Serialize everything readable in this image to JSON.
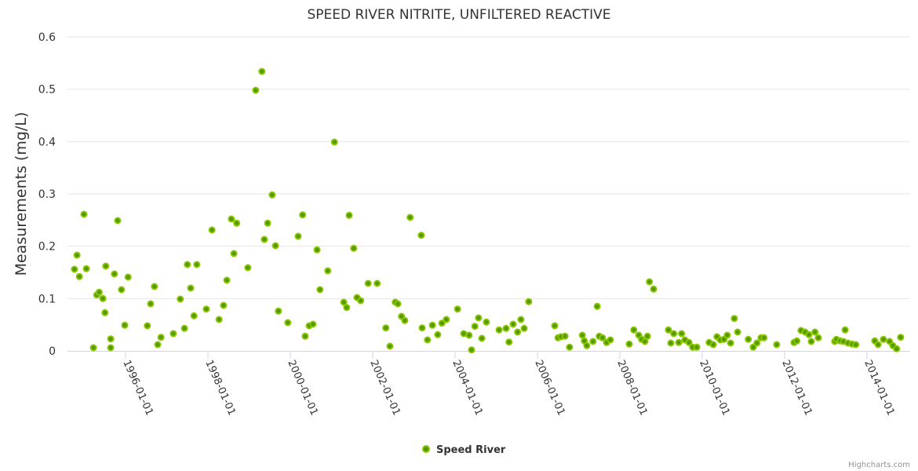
{
  "chart_data": {
    "type": "scatter",
    "title": "SPEED RIVER NITRITE, UNFILTERED REACTIVE",
    "xlabel": "",
    "ylabel": "Measurements (mg/L)",
    "xlim": [
      1994.59,
      2015.05
    ],
    "ylim": [
      0,
      0.6
    ],
    "yticks": [
      0,
      0.1,
      0.2,
      0.3,
      0.4,
      0.5,
      0.6
    ],
    "ytick_labels": [
      "0",
      "0.1",
      "0.2",
      "0.3",
      "0.4",
      "0.5",
      "0.6"
    ],
    "xticks": [
      1996,
      1998,
      2000,
      2002,
      2004,
      2006,
      2008,
      2010,
      2012,
      2014
    ],
    "xtick_labels": [
      "1996-01-01",
      "1998-01-01",
      "2000-01-01",
      "2002-01-01",
      "2004-01-01",
      "2006-01-01",
      "2008-01-01",
      "2010-01-01",
      "2012-01-01",
      "2014-01-01"
    ],
    "grid": true,
    "legend_position": "bottom-center",
    "credits": "Highcharts.com",
    "colors": {
      "marker_fill": "#4f9a00",
      "marker_stroke": "#8cc400",
      "grid": "#e6e6e6",
      "axis": "#ccd6eb"
    },
    "series": [
      {
        "name": "Speed River",
        "points": [
          [
            1994.76,
            0.156
          ],
          [
            1994.82,
            0.183
          ],
          [
            1994.88,
            0.142
          ],
          [
            1994.99,
            0.261
          ],
          [
            1995.05,
            0.157
          ],
          [
            1995.22,
            0.006
          ],
          [
            1995.3,
            0.107
          ],
          [
            1995.36,
            0.112
          ],
          [
            1995.45,
            0.1
          ],
          [
            1995.5,
            0.073
          ],
          [
            1995.52,
            0.162
          ],
          [
            1995.64,
            0.023
          ],
          [
            1995.64,
            0.006
          ],
          [
            1995.73,
            0.147
          ],
          [
            1995.81,
            0.249
          ],
          [
            1995.9,
            0.117
          ],
          [
            1995.98,
            0.049
          ],
          [
            1996.06,
            0.141
          ],
          [
            1996.53,
            0.048
          ],
          [
            1996.61,
            0.09
          ],
          [
            1996.7,
            0.123
          ],
          [
            1996.78,
            0.012
          ],
          [
            1996.86,
            0.026
          ],
          [
            1997.16,
            0.033
          ],
          [
            1997.33,
            0.099
          ],
          [
            1997.43,
            0.043
          ],
          [
            1997.5,
            0.165
          ],
          [
            1997.58,
            0.12
          ],
          [
            1997.66,
            0.067
          ],
          [
            1997.73,
            0.165
          ],
          [
            1997.96,
            0.08
          ],
          [
            1998.1,
            0.231
          ],
          [
            1998.27,
            0.06
          ],
          [
            1998.38,
            0.087
          ],
          [
            1998.46,
            0.135
          ],
          [
            1998.57,
            0.252
          ],
          [
            1998.63,
            0.186
          ],
          [
            1998.7,
            0.244
          ],
          [
            1998.97,
            0.159
          ],
          [
            1999.16,
            0.498
          ],
          [
            1999.31,
            0.534
          ],
          [
            1999.37,
            0.213
          ],
          [
            1999.45,
            0.244
          ],
          [
            1999.56,
            0.298
          ],
          [
            1999.64,
            0.201
          ],
          [
            1999.71,
            0.076
          ],
          [
            1999.94,
            0.054
          ],
          [
            2000.19,
            0.219
          ],
          [
            2000.3,
            0.26
          ],
          [
            2000.36,
            0.028
          ],
          [
            2000.46,
            0.048
          ],
          [
            2000.55,
            0.051
          ],
          [
            2000.65,
            0.193
          ],
          [
            2000.72,
            0.117
          ],
          [
            2000.91,
            0.153
          ],
          [
            2001.07,
            0.399
          ],
          [
            2001.3,
            0.093
          ],
          [
            2001.37,
            0.083
          ],
          [
            2001.43,
            0.259
          ],
          [
            2001.54,
            0.196
          ],
          [
            2001.62,
            0.102
          ],
          [
            2001.71,
            0.096
          ],
          [
            2001.89,
            0.129
          ],
          [
            2002.11,
            0.129
          ],
          [
            2002.32,
            0.044
          ],
          [
            2002.42,
            0.009
          ],
          [
            2002.55,
            0.093
          ],
          [
            2002.61,
            0.09
          ],
          [
            2002.7,
            0.066
          ],
          [
            2002.78,
            0.058
          ],
          [
            2002.91,
            0.255
          ],
          [
            2003.18,
            0.221
          ],
          [
            2003.2,
            0.044
          ],
          [
            2003.33,
            0.021
          ],
          [
            2003.45,
            0.049
          ],
          [
            2003.58,
            0.031
          ],
          [
            2003.68,
            0.053
          ],
          [
            2003.79,
            0.06
          ],
          [
            2004.06,
            0.08
          ],
          [
            2004.21,
            0.033
          ],
          [
            2004.34,
            0.03
          ],
          [
            2004.4,
            0.002
          ],
          [
            2004.48,
            0.047
          ],
          [
            2004.57,
            0.063
          ],
          [
            2004.65,
            0.024
          ],
          [
            2004.76,
            0.055
          ],
          [
            2005.07,
            0.04
          ],
          [
            2005.24,
            0.043
          ],
          [
            2005.31,
            0.017
          ],
          [
            2005.41,
            0.051
          ],
          [
            2005.52,
            0.036
          ],
          [
            2005.6,
            0.06
          ],
          [
            2005.68,
            0.043
          ],
          [
            2005.79,
            0.094
          ],
          [
            2006.42,
            0.048
          ],
          [
            2006.5,
            0.025
          ],
          [
            2006.57,
            0.027
          ],
          [
            2006.67,
            0.028
          ],
          [
            2006.78,
            0.007
          ],
          [
            2007.09,
            0.03
          ],
          [
            2007.14,
            0.019
          ],
          [
            2007.2,
            0.01
          ],
          [
            2007.35,
            0.018
          ],
          [
            2007.45,
            0.085
          ],
          [
            2007.5,
            0.028
          ],
          [
            2007.58,
            0.025
          ],
          [
            2007.68,
            0.016
          ],
          [
            2007.77,
            0.021
          ],
          [
            2008.23,
            0.013
          ],
          [
            2008.34,
            0.04
          ],
          [
            2008.46,
            0.03
          ],
          [
            2008.53,
            0.022
          ],
          [
            2008.61,
            0.018
          ],
          [
            2008.67,
            0.028
          ],
          [
            2008.72,
            0.132
          ],
          [
            2008.82,
            0.118
          ],
          [
            2009.18,
            0.04
          ],
          [
            2009.24,
            0.015
          ],
          [
            2009.31,
            0.033
          ],
          [
            2009.43,
            0.016
          ],
          [
            2009.5,
            0.033
          ],
          [
            2009.58,
            0.021
          ],
          [
            2009.68,
            0.016
          ],
          [
            2009.77,
            0.007
          ],
          [
            2009.87,
            0.007
          ],
          [
            2010.17,
            0.016
          ],
          [
            2010.27,
            0.012
          ],
          [
            2010.36,
            0.027
          ],
          [
            2010.44,
            0.021
          ],
          [
            2010.53,
            0.022
          ],
          [
            2010.61,
            0.03
          ],
          [
            2010.69,
            0.015
          ],
          [
            2010.78,
            0.062
          ],
          [
            2010.86,
            0.036
          ],
          [
            2011.12,
            0.022
          ],
          [
            2011.24,
            0.007
          ],
          [
            2011.33,
            0.015
          ],
          [
            2011.43,
            0.025
          ],
          [
            2011.5,
            0.025
          ],
          [
            2011.81,
            0.012
          ],
          [
            2012.23,
            0.016
          ],
          [
            2012.3,
            0.019
          ],
          [
            2012.4,
            0.039
          ],
          [
            2012.5,
            0.036
          ],
          [
            2012.59,
            0.031
          ],
          [
            2012.65,
            0.018
          ],
          [
            2012.74,
            0.036
          ],
          [
            2012.82,
            0.025
          ],
          [
            2013.22,
            0.018
          ],
          [
            2013.26,
            0.022
          ],
          [
            2013.35,
            0.019
          ],
          [
            2013.43,
            0.018
          ],
          [
            2013.47,
            0.04
          ],
          [
            2013.54,
            0.015
          ],
          [
            2013.64,
            0.013
          ],
          [
            2013.73,
            0.012
          ],
          [
            2014.19,
            0.019
          ],
          [
            2014.27,
            0.012
          ],
          [
            2014.4,
            0.022
          ],
          [
            2014.55,
            0.018
          ],
          [
            2014.63,
            0.01
          ],
          [
            2014.72,
            0.004
          ],
          [
            2014.82,
            0.026
          ]
        ]
      }
    ]
  }
}
